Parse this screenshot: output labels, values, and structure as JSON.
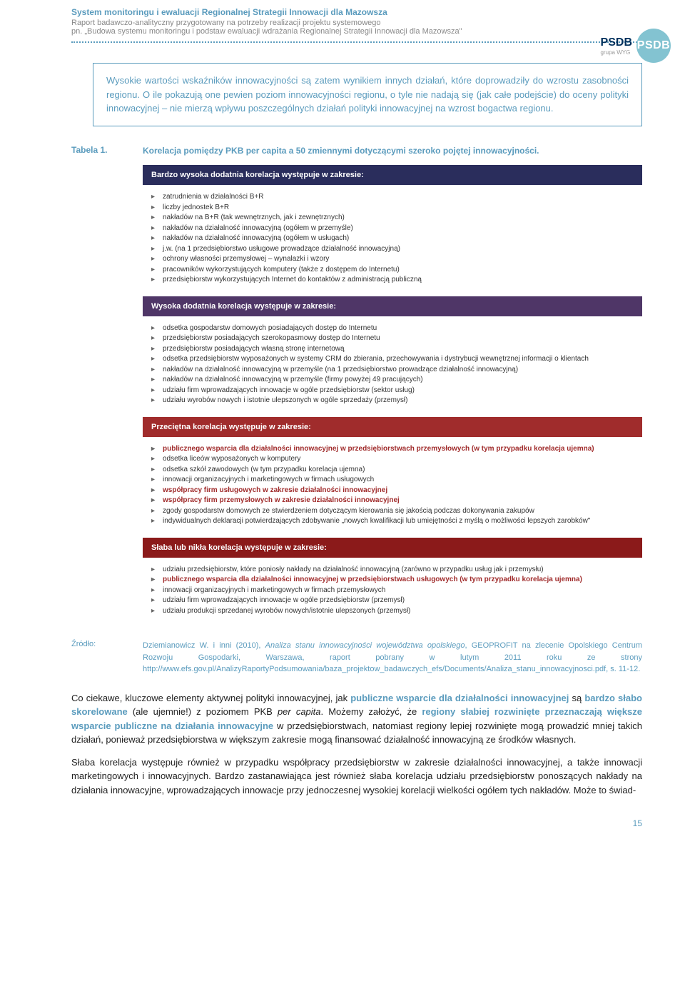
{
  "header": {
    "title": "System monitoringu i ewaluacji Regionalnej Strategii Innowacji dla Mazowsza",
    "sub1": "Raport badawczo-analityczny przygotowany na potrzeby realizacji projektu systemowego",
    "sub2": "pn. „Budowa systemu monitoringu i podstaw ewaluacji wdrażania Regionalnej Strategii Innowacji dla Mazowsza\"",
    "logo_text": "PSDB",
    "logo_sub": "grupa WYG",
    "logo_circle": "PSDB"
  },
  "highlight_box": "Wysokie wartości wskaźników innowacyjności są zatem wynikiem innych działań, które doprowadziły do wzrostu zasobności regionu. O ile pokazują one pewien poziom innowacyjności regionu, o tyle nie nadają się (jak całe podejście) do oceny polityki innowacyjnej – nie mierzą wpływu poszczególnych działań polityki innowacyjnej na wzrost bogactwa regionu.",
  "tabela": {
    "label": "Tabela 1.",
    "title": "Korelacja pomiędzy PKB per capita a 50 zmiennymi dotyczącymi szeroko pojętej innowacyjności."
  },
  "sections": [
    {
      "header": "Bardzo wysoka dodatnia korelacja występuje w zakresie:",
      "bg": "bg-navy",
      "items": [
        {
          "t": "zatrudnienia w działalności B+R",
          "r": false
        },
        {
          "t": "liczby jednostek B+R",
          "r": false
        },
        {
          "t": "nakładów na B+R (tak wewnętrznych, jak i zewnętrznych)",
          "r": false
        },
        {
          "t": "nakładów na działalność innowacyjną (ogółem w przemyśle)",
          "r": false
        },
        {
          "t": "nakładów na działalność innowacyjną (ogółem w usługach)",
          "r": false
        },
        {
          "t": "j.w. (na 1 przedsiębiorstwo usługowe prowadzące działalność innowacyjną)",
          "r": false
        },
        {
          "t": "ochrony własności przemysłowej – wynalazki i wzory",
          "r": false
        },
        {
          "t": "pracowników wykorzystujących komputery (także z dostępem do Internetu)",
          "r": false
        },
        {
          "t": "przedsiębiorstw wykorzystujących Internet do kontaktów z administracją publiczną",
          "r": false
        }
      ]
    },
    {
      "header": "Wysoka dodatnia korelacja występuje w zakresie:",
      "bg": "bg-purple",
      "items": [
        {
          "t": "odsetka gospodarstw domowych posiadających dostęp do Internetu",
          "r": false
        },
        {
          "t": "przedsiębiorstw posiadających szerokopasmowy dostęp do Internetu",
          "r": false
        },
        {
          "t": "przedsiębiorstw posiadających własną stronę internetową",
          "r": false
        },
        {
          "t": "odsetka przedsiębiorstw wyposażonych w systemy CRM do zbierania, przechowywania i dystrybucji wewnętrznej informacji o klientach",
          "r": false
        },
        {
          "t": "nakładów na działalność innowacyjną w przemyśle (na 1 przedsiębiorstwo prowadzące działalność innowacyjną)",
          "r": false
        },
        {
          "t": "nakładów na działalność innowacyjną w przemyśle (firmy powyżej 49 pracujących)",
          "r": false
        },
        {
          "t": "udziału firm wprowadzających innowacje w ogóle przedsiębiorstw (sektor usług)",
          "r": false
        },
        {
          "t": "udziału wyrobów nowych i istotnie ulepszonych w ogóle sprzedaży (przemysł)",
          "r": false
        }
      ]
    },
    {
      "header": "Przeciętna korelacja występuje w zakresie:",
      "bg": "bg-red",
      "items": [
        {
          "t": "publicznego wsparcia dla działalności innowacyjnej w przedsiębiorstwach przemysłowych (w tym przypadku korelacja ujemna)",
          "r": true
        },
        {
          "t": "odsetka liceów wyposażonych w komputery",
          "r": false
        },
        {
          "t": "odsetka szkół zawodowych (w tym przypadku korelacja ujemna)",
          "r": false
        },
        {
          "t": "innowacji organizacyjnych i marketingowych w firmach usługowych",
          "r": false
        },
        {
          "t": "współpracy firm usługowych w zakresie działalności innowacyjnej",
          "r": true
        },
        {
          "t": "współpracy firm przemysłowych w zakresie działalności innowacyjnej",
          "r": true
        },
        {
          "t": "zgody gospodarstw domowych ze stwierdzeniem dotyczącym kierowania się jakością podczas dokonywania zakupów",
          "r": false
        },
        {
          "t": "indywidualnych deklaracji potwierdzających zdobywanie „nowych kwalifikacji lub umiejętności z myślą o możliwości lepszych zarobków\"",
          "r": false
        }
      ]
    },
    {
      "header": "Słaba lub nikła korelacja występuje w zakresie:",
      "bg": "bg-darkred",
      "items": [
        {
          "t": "udziału przedsiębiorstw, które poniosły nakłady na działalność innowacyjną (zarówno w przypadku usług jak i przemysłu)",
          "r": false
        },
        {
          "t": "publicznego wsparcia dla działalności innowacyjnej w przedsiębiorstwach usługowych (w tym przypadku korelacja ujemna)",
          "r": true
        },
        {
          "t": "innowacji organizacyjnych i marketingowych w firmach przemysłowych",
          "r": false
        },
        {
          "t": "udziału firm wprowadzających innowacje w ogóle przedsiębiorstw (przemysł)",
          "r": false
        },
        {
          "t": "udziału produkcji sprzedanej wyrobów nowych/istotnie ulepszonych (przemysł)",
          "r": false
        }
      ]
    }
  ],
  "source": {
    "label": "Źródło:",
    "prefix": "Dziemianowicz W. i inni (2010), ",
    "italic": "Analiza stanu innowacyjności województwa opolskiego",
    "suffix": ", GEOPROFIT na zlecenie Opolskiego Centrum Rozwoju Gospodarki, Warszawa, raport pobrany w lutym 2011 roku ze strony http://www.efs.gov.pl/AnalizyRaportyPodsumowania/baza_projektow_badawczych_efs/Documents/Analiza_stanu_innowacyjnosci.pdf, s. 11-12."
  },
  "para1": {
    "p1": "Co ciekawe, kluczowe elementy aktywnej polityki innowacyjnej, jak ",
    "hl1": "publiczne wsparcie dla działalności innowacyjnej",
    "p2": " są ",
    "hl2": "bardzo słabo skorelowane",
    "p3": " (ale ujemnie!) z poziomem PKB ",
    "ital": "per capita",
    "p4": ". Możemy założyć, że ",
    "hl3": "regiony słabiej rozwinięte przeznaczają większe wsparcie publiczne na działania innowacyjne",
    "p5": " w przedsiębiorstwach, natomiast regiony lepiej rozwinięte mogą prowadzić mniej takich działań, ponieważ przedsiębiorstwa w większym zakresie mogą finansować działalność innowacyjną ze środków własnych."
  },
  "para2": "Słaba korelacja występuje również w przypadku współpracy przedsiębiorstw w zakresie działalności innowacyjnej, a także innowacji marketingowych i innowacyjnych. Bardzo zastanawiająca jest również słaba korelacja udziału przedsiębiorstw ponoszących nakłady na działania innowacyjne, wprowadzających innowacje przy jednoczesnej wysokiej korelacji wielkości ogółem tych nakładów. Może to świad-",
  "page_number": "15",
  "colors": {
    "accent": "#5a9bbd",
    "navy": "#2a2d5c",
    "purple": "#4f3667",
    "red": "#a02c2c",
    "darkred": "#8b1a1a",
    "logo_circle": "#83c3d1"
  }
}
